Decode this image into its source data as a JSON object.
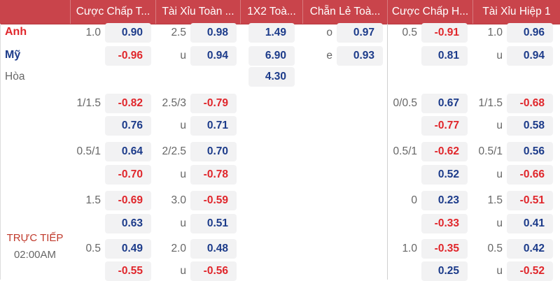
{
  "header": {
    "columns": [
      "Cược Chấp T...",
      "Tài Xỉu Toàn ...",
      "1X2 Toà...",
      "Chẵn Lẻ Toà...",
      "Cược Chấp H...",
      "Tài Xỉu Hiệp 1"
    ]
  },
  "teams": {
    "home": "Anh",
    "away": "Mỹ",
    "draw": "Hòa"
  },
  "status": {
    "live": "TRỰC TIẾP",
    "time": "02:00AM"
  },
  "colors": {
    "header": "#c9444b",
    "positive": "#1c3b8a",
    "negative": "#e0262b",
    "home": "#e0262b",
    "away": "#1c3b8a",
    "live": "#c0392b"
  },
  "rows": [
    [
      [
        "1.0",
        "0.90"
      ],
      [
        "2.5",
        "0.98"
      ],
      [
        "",
        "1.49"
      ],
      [
        "o",
        "0.97"
      ],
      [
        "0.5",
        "-0.91"
      ],
      [
        "1.0",
        "0.96"
      ]
    ],
    [
      [
        "",
        "-0.96"
      ],
      [
        "u",
        "0.94"
      ],
      [
        "",
        "6.90"
      ],
      [
        "e",
        "0.93"
      ],
      [
        "",
        "0.81"
      ],
      [
        "u",
        "0.94"
      ]
    ],
    [
      null,
      null,
      [
        "",
        "4.30"
      ],
      null,
      null,
      null
    ],
    [
      [
        "1/1.5",
        "-0.82"
      ],
      [
        "2.5/3",
        "-0.79"
      ],
      null,
      null,
      [
        "0/0.5",
        "0.67"
      ],
      [
        "1/1.5",
        "-0.68"
      ]
    ],
    [
      [
        "",
        "0.76"
      ],
      [
        "u",
        "0.71"
      ],
      null,
      null,
      [
        "",
        "-0.77"
      ],
      [
        "u",
        "0.58"
      ]
    ],
    [
      [
        "0.5/1",
        "0.64"
      ],
      [
        "2/2.5",
        "0.70"
      ],
      null,
      null,
      [
        "0.5/1",
        "-0.62"
      ],
      [
        "0.5/1",
        "0.56"
      ]
    ],
    [
      [
        "",
        "-0.70"
      ],
      [
        "u",
        "-0.78"
      ],
      null,
      null,
      [
        "",
        "0.52"
      ],
      [
        "u",
        "-0.66"
      ]
    ],
    [
      [
        "1.5",
        "-0.69"
      ],
      [
        "3.0",
        "-0.59"
      ],
      null,
      null,
      [
        "0",
        "0.23"
      ],
      [
        "1.5",
        "-0.51"
      ]
    ],
    [
      [
        "",
        "0.63"
      ],
      [
        "u",
        "0.51"
      ],
      null,
      null,
      [
        "",
        "-0.33"
      ],
      [
        "u",
        "0.41"
      ]
    ],
    [
      [
        "0.5",
        "0.49"
      ],
      [
        "2.0",
        "0.48"
      ],
      null,
      null,
      [
        "1.0",
        "-0.35"
      ],
      [
        "0.5",
        "0.42"
      ]
    ],
    [
      [
        "",
        "-0.55"
      ],
      [
        "u",
        "-0.56"
      ],
      null,
      null,
      [
        "",
        "0.25"
      ],
      [
        "u",
        "-0.52"
      ]
    ]
  ]
}
